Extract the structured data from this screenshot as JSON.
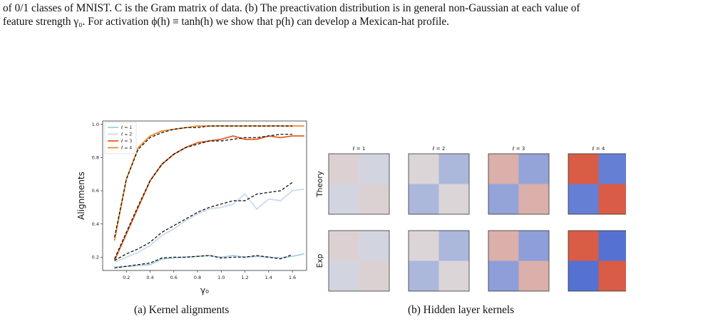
{
  "caption": {
    "line1": "of 0/1 classes of MNIST. C is the Gram matrix of data. (b) The preactivation distribution is in general non-Gaussian at each value of",
    "line2": "feature strength γ₀. For activation ϕ(h) ≡ tanh(h) we show that p(h) can develop a Mexican-hat profile."
  },
  "subcaptions": {
    "a": "(a) Kernel alignments",
    "b": "(b) Hidden layer kernels"
  },
  "chart_data": [
    {
      "type": "line",
      "title": "",
      "xlabel": "γ₀",
      "ylabel": "Alignments",
      "xlim": [
        0.0,
        1.72
      ],
      "ylim": [
        0.12,
        1.02
      ],
      "xticks": [
        "0.2",
        "0.4",
        "0.6",
        "0.8",
        "1.0",
        "1.2",
        "1.4",
        "1.6"
      ],
      "yticks": [
        "0.2",
        "0.4",
        "0.6",
        "0.8",
        "1.0"
      ],
      "legend": {
        "placement": "top-left",
        "entries": [
          "ℓ = 1",
          "ℓ = 2",
          "ℓ = 3",
          "ℓ = 4"
        ]
      },
      "series": [
        {
          "name": "ℓ = 1",
          "color": "#a6cde3",
          "style": "experiment",
          "x": [
            0.1,
            0.2,
            0.3,
            0.4,
            0.5,
            0.6,
            0.7,
            0.8,
            0.9,
            1.0,
            1.1,
            1.2,
            1.3,
            1.4,
            1.5,
            1.6,
            1.7
          ],
          "y": [
            0.14,
            0.145,
            0.15,
            0.155,
            0.19,
            0.195,
            0.2,
            0.205,
            0.21,
            0.2,
            0.21,
            0.2,
            0.205,
            0.2,
            0.195,
            0.205,
            0.22
          ]
        },
        {
          "name": "ℓ = 2",
          "color": "#c9dcee",
          "style": "experiment",
          "x": [
            0.1,
            0.2,
            0.3,
            0.4,
            0.5,
            0.6,
            0.7,
            0.8,
            0.9,
            1.0,
            1.1,
            1.2,
            1.3,
            1.4,
            1.5,
            1.6,
            1.7
          ],
          "y": [
            0.17,
            0.2,
            0.23,
            0.27,
            0.33,
            0.37,
            0.42,
            0.46,
            0.49,
            0.5,
            0.52,
            0.58,
            0.49,
            0.55,
            0.54,
            0.6,
            0.61
          ]
        },
        {
          "name": "ℓ = 3",
          "color": "#e85d1c",
          "style": "experiment",
          "x": [
            0.1,
            0.2,
            0.3,
            0.4,
            0.5,
            0.6,
            0.7,
            0.8,
            0.9,
            1.0,
            1.1,
            1.2,
            1.3,
            1.4,
            1.5,
            1.6,
            1.7
          ],
          "y": [
            0.18,
            0.34,
            0.5,
            0.66,
            0.76,
            0.82,
            0.86,
            0.89,
            0.9,
            0.91,
            0.93,
            0.91,
            0.91,
            0.93,
            0.92,
            0.93,
            0.93
          ]
        },
        {
          "name": "ℓ = 4",
          "color": "#f08a2c",
          "style": "experiment",
          "x": [
            0.1,
            0.2,
            0.3,
            0.4,
            0.5,
            0.6,
            0.7,
            0.8,
            0.9,
            1.0,
            1.1,
            1.2,
            1.3,
            1.4,
            1.5,
            1.6,
            1.7
          ],
          "y": [
            0.3,
            0.67,
            0.86,
            0.93,
            0.96,
            0.97,
            0.98,
            0.99,
            0.99,
            0.99,
            0.99,
            0.99,
            0.99,
            0.99,
            0.99,
            0.99,
            0.99
          ]
        },
        {
          "name": "theory ℓ = 1",
          "color": "#000000",
          "style": "theory",
          "x": [
            0.1,
            0.2,
            0.3,
            0.4,
            0.5,
            0.6,
            0.7,
            0.8,
            0.9,
            1.0,
            1.1,
            1.2,
            1.3,
            1.4,
            1.5,
            1.6
          ],
          "y": [
            0.135,
            0.145,
            0.155,
            0.165,
            0.195,
            0.2,
            0.2,
            0.205,
            0.21,
            0.195,
            0.2,
            0.2,
            0.21,
            0.2,
            0.19,
            0.215
          ]
        },
        {
          "name": "theory ℓ = 2",
          "color": "#000000",
          "style": "theory",
          "x": [
            0.1,
            0.2,
            0.3,
            0.4,
            0.5,
            0.6,
            0.7,
            0.8,
            0.9,
            1.0,
            1.1,
            1.2,
            1.3,
            1.4,
            1.5,
            1.6
          ],
          "y": [
            0.18,
            0.22,
            0.25,
            0.29,
            0.35,
            0.39,
            0.43,
            0.47,
            0.5,
            0.52,
            0.54,
            0.54,
            0.58,
            0.59,
            0.6,
            0.65
          ]
        },
        {
          "name": "theory ℓ = 3",
          "color": "#000000",
          "style": "theory",
          "x": [
            0.1,
            0.2,
            0.3,
            0.4,
            0.5,
            0.6,
            0.7,
            0.8,
            0.9,
            1.0,
            1.1,
            1.2,
            1.3,
            1.4,
            1.5,
            1.6
          ],
          "y": [
            0.19,
            0.35,
            0.51,
            0.66,
            0.76,
            0.82,
            0.86,
            0.88,
            0.9,
            0.9,
            0.91,
            0.92,
            0.92,
            0.93,
            0.94,
            0.94
          ]
        },
        {
          "name": "theory ℓ = 4",
          "color": "#000000",
          "style": "theory",
          "x": [
            0.1,
            0.2,
            0.3,
            0.4,
            0.5,
            0.6,
            0.7,
            0.8,
            0.9,
            1.0,
            1.1,
            1.2,
            1.3,
            1.4,
            1.5,
            1.6
          ],
          "y": [
            0.32,
            0.67,
            0.85,
            0.92,
            0.95,
            0.97,
            0.98,
            0.98,
            0.99,
            0.99,
            0.99,
            0.99,
            0.99,
            0.99,
            0.99,
            0.99
          ]
        }
      ]
    },
    {
      "type": "heatmap",
      "title": "",
      "row_labels": [
        "Theory",
        "Exp"
      ],
      "column_labels": [
        "ℓ = 1",
        "ℓ = 2",
        "ℓ = 3",
        "ℓ = 4"
      ],
      "block_structure": "2x2 blocks (class 0 / class 1): diagonal blocks = within-class, off-diagonal = between-class",
      "colors": {
        "low": "#3d5fd1",
        "mid": "#dcdde0",
        "high": "#d9452b"
      },
      "values": {
        "Theory": [
          {
            "diag": 0.08,
            "off": -0.06
          },
          {
            "diag": 0.05,
            "off": -0.3
          },
          {
            "diag": 0.3,
            "off": -0.45
          },
          {
            "diag": 0.85,
            "off": -0.75
          }
        ],
        "Exp": [
          {
            "diag": 0.08,
            "off": -0.06
          },
          {
            "diag": 0.05,
            "off": -0.3
          },
          {
            "diag": 0.3,
            "off": -0.5
          },
          {
            "diag": 0.85,
            "off": -0.85
          }
        ]
      }
    }
  ]
}
